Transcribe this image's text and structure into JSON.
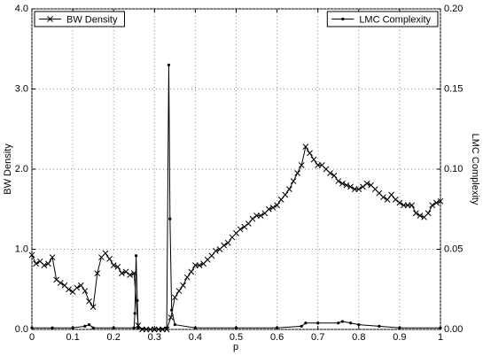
{
  "chart_data": {
    "type": "line",
    "xlabel": "p",
    "ylabel": "BW Density",
    "y2label": "LMC Complexity",
    "xlim": [
      0,
      1
    ],
    "ylim": [
      0,
      4
    ],
    "y2lim": [
      0,
      0.2
    ],
    "xticks": [
      0,
      0.1,
      0.2,
      0.3,
      0.4,
      0.5,
      0.6,
      0.7,
      0.8,
      0.9,
      1
    ],
    "yticks": [
      {
        "value": 0,
        "label": "0.0"
      },
      {
        "value": 1,
        "label": "1.0"
      },
      {
        "value": 2,
        "label": "2.0"
      },
      {
        "value": 3,
        "label": "3.0"
      },
      {
        "value": 4,
        "label": "4.0"
      }
    ],
    "y2ticks": [
      {
        "value": 0,
        "label": "0.00"
      },
      0.05,
      {
        "value": 0.1,
        "label": "0.10"
      },
      0.15,
      {
        "value": 0.2,
        "label": "0.20"
      }
    ],
    "grid": true,
    "series": [
      {
        "name": "BW Density",
        "color": "#000000",
        "marker": "x",
        "axis": "y",
        "legend": "upper left",
        "x": [
          0,
          0.01,
          0.02,
          0.03,
          0.04,
          0.05,
          0.06,
          0.07,
          0.08,
          0.09,
          0.1,
          0.11,
          0.12,
          0.13,
          0.14,
          0.15,
          0.16,
          0.17,
          0.18,
          0.19,
          0.2,
          0.21,
          0.22,
          0.23,
          0.24,
          0.25,
          0.26,
          0.27,
          0.28,
          0.29,
          0.3,
          0.31,
          0.32,
          0.33,
          0.34,
          0.35,
          0.36,
          0.37,
          0.38,
          0.39,
          0.4,
          0.41,
          0.42,
          0.43,
          0.44,
          0.45,
          0.46,
          0.47,
          0.48,
          0.49,
          0.5,
          0.51,
          0.52,
          0.53,
          0.54,
          0.55,
          0.56,
          0.57,
          0.58,
          0.59,
          0.6,
          0.61,
          0.62,
          0.63,
          0.64,
          0.65,
          0.66,
          0.67,
          0.68,
          0.69,
          0.7,
          0.71,
          0.72,
          0.73,
          0.74,
          0.75,
          0.76,
          0.77,
          0.78,
          0.79,
          0.8,
          0.81,
          0.82,
          0.83,
          0.84,
          0.85,
          0.86,
          0.87,
          0.88,
          0.89,
          0.9,
          0.91,
          0.92,
          0.93,
          0.94,
          0.95,
          0.96,
          0.97,
          0.98,
          0.99,
          1
        ],
        "values": [
          0.93,
          0.82,
          0.85,
          0.8,
          0.82,
          0.9,
          0.62,
          0.58,
          0.55,
          0.5,
          0.47,
          0.52,
          0.55,
          0.48,
          0.35,
          0.28,
          0.7,
          0.9,
          0.95,
          0.88,
          0.8,
          0.78,
          0.7,
          0.72,
          0.68,
          0.7,
          0.05,
          0,
          0,
          0,
          0,
          0,
          0,
          0,
          0.15,
          0.4,
          0.48,
          0.55,
          0.65,
          0.72,
          0.8,
          0.8,
          0.82,
          0.87,
          0.92,
          0.98,
          1,
          1.05,
          1.08,
          1.15,
          1.2,
          1.25,
          1.28,
          1.32,
          1.38,
          1.42,
          1.42,
          1.45,
          1.5,
          1.52,
          1.55,
          1.62,
          1.68,
          1.75,
          1.85,
          1.95,
          2.05,
          2.28,
          2.2,
          2.12,
          2.05,
          2.05,
          2,
          1.95,
          1.92,
          1.85,
          1.82,
          1.8,
          1.78,
          1.75,
          1.75,
          1.78,
          1.82,
          1.8,
          1.75,
          1.7,
          1.65,
          1.62,
          1.68,
          1.62,
          1.58,
          1.55,
          1.55,
          1.55,
          1.45,
          1.42,
          1.4,
          1.45,
          1.55,
          1.58,
          1.6
        ]
      },
      {
        "name": "LMC Complexity",
        "color": "#000000",
        "marker": "dot",
        "axis": "y2",
        "legend": "upper right",
        "x": [
          0,
          0.05,
          0.1,
          0.13,
          0.14,
          0.15,
          0.2,
          0.25,
          0.252,
          0.255,
          0.258,
          0.26,
          0.3,
          0.33,
          0.335,
          0.338,
          0.342,
          0.35,
          0.4,
          0.5,
          0.6,
          0.66,
          0.67,
          0.7,
          0.75,
          0.76,
          0.78,
          0.8,
          0.85,
          0.9,
          1
        ],
        "values": [
          0.001,
          0.001,
          0.001,
          0.002,
          0.003,
          0.001,
          0.001,
          0.001,
          0.01,
          0.046,
          0.018,
          0.001,
          0,
          0.001,
          0.165,
          0.069,
          0.012,
          0.003,
          0.001,
          0.001,
          0.001,
          0.002,
          0.004,
          0.004,
          0.004,
          0.005,
          0.004,
          0.003,
          0.002,
          0.001,
          0.001
        ]
      }
    ]
  }
}
